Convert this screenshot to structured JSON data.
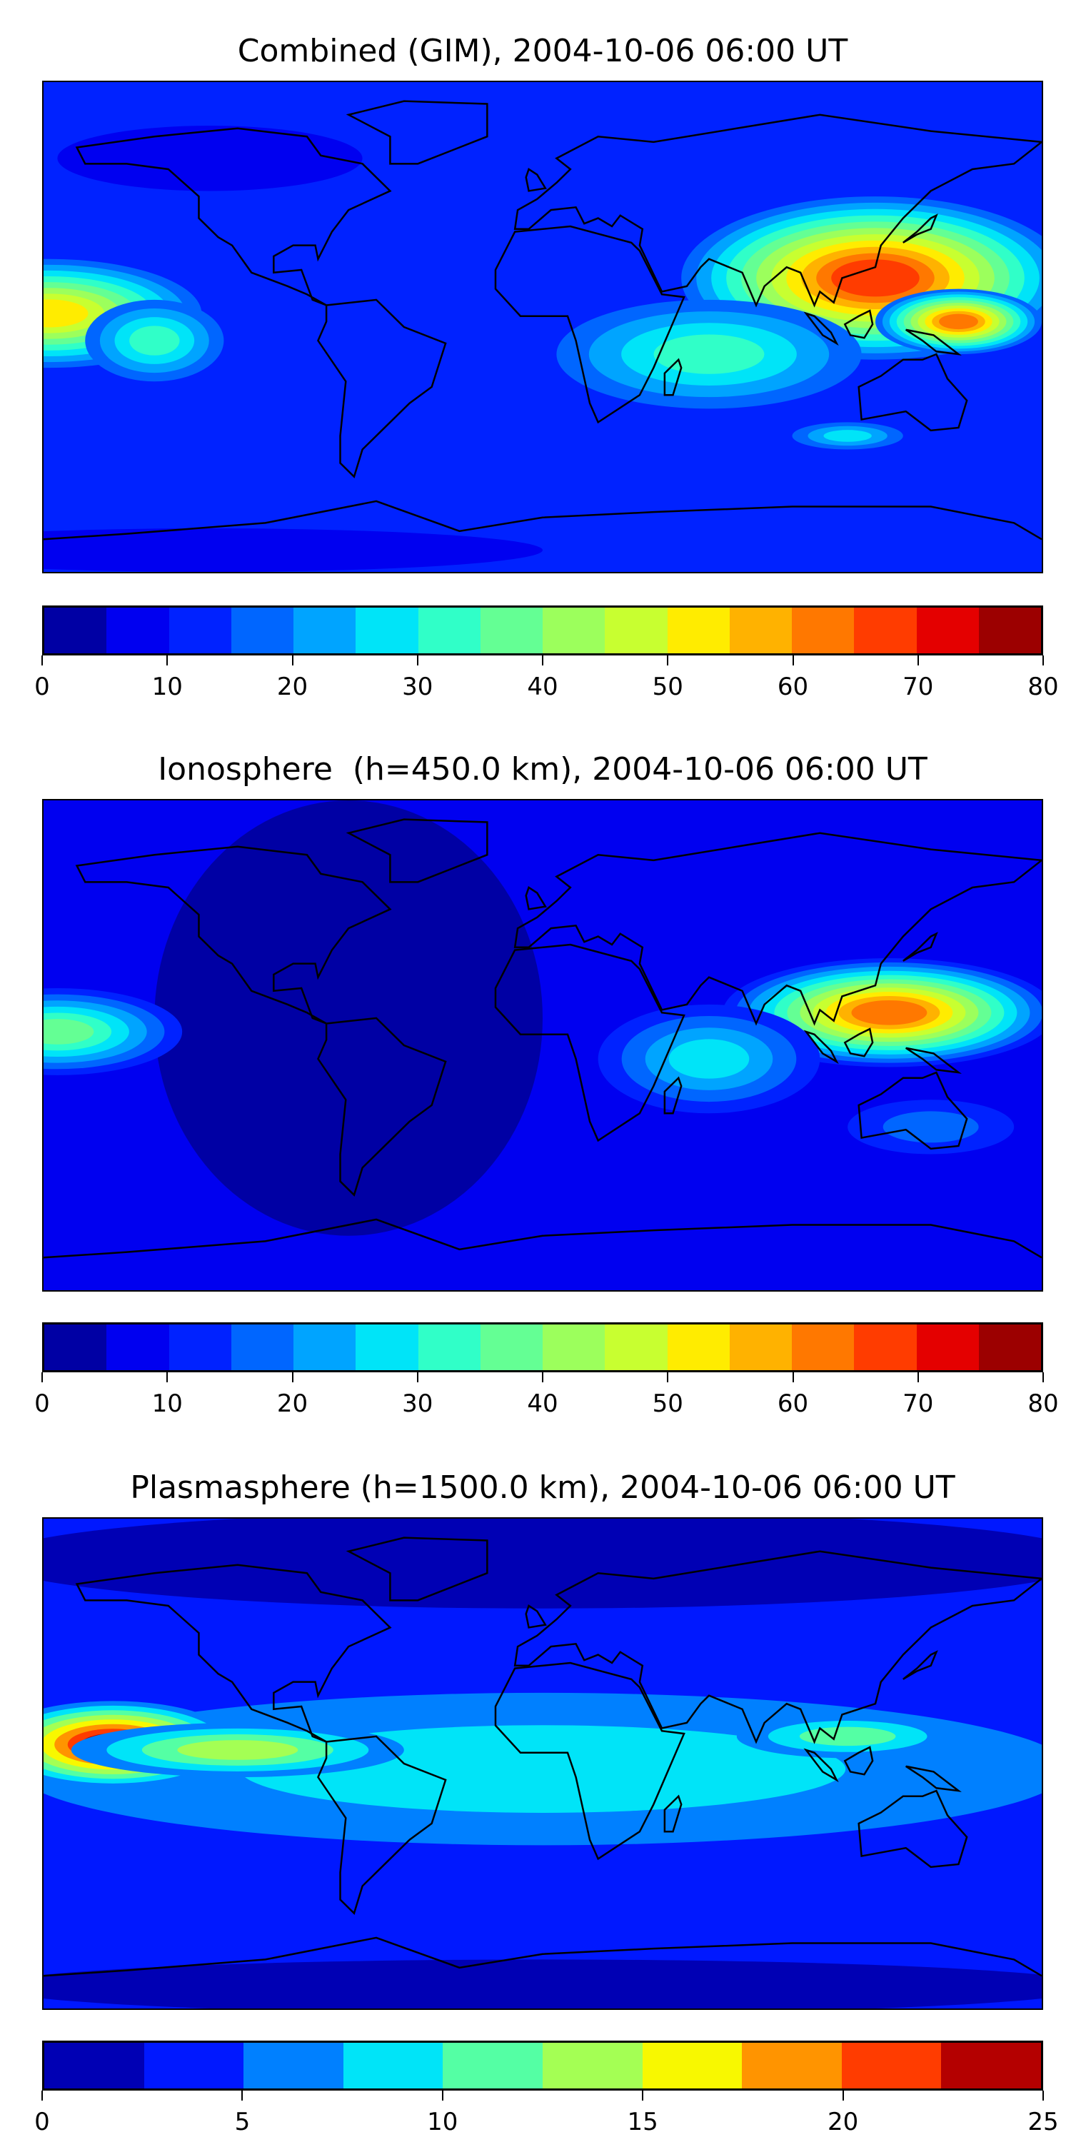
{
  "chart_data": [
    {
      "type": "heatmap",
      "title": "Combined (GIM), 2004-10-06 06:00 UT",
      "xlim": [
        -180,
        180
      ],
      "ylim": [
        -90,
        90
      ],
      "levels": [
        0,
        5,
        10,
        15,
        20,
        25,
        30,
        35,
        40,
        45,
        50,
        55,
        60,
        65,
        70,
        75,
        80
      ],
      "colors": [
        "#0000a4",
        "#0000f0",
        "#0022ff",
        "#0066ff",
        "#00a4ff",
        "#00e4f8",
        "#30ffc8",
        "#64ff94",
        "#9cff5c",
        "#c8ff30",
        "#ffec00",
        "#ffb200",
        "#ff7800",
        "#ff3c00",
        "#e40000",
        "#9c0000"
      ],
      "colorbar_ticks": [
        "0",
        "10",
        "20",
        "30",
        "40",
        "50",
        "60",
        "70",
        "80"
      ],
      "base_value": 12,
      "features": [
        {
          "lon": 120,
          "lat": 18,
          "rx": 70,
          "ry": 30,
          "peak": 67
        },
        {
          "lon": 150,
          "lat": 2,
          "rx": 30,
          "ry": 12,
          "peak": 62
        },
        {
          "lon": -178,
          "lat": 5,
          "rx": 55,
          "ry": 20,
          "peak": 52
        },
        {
          "lon": 60,
          "lat": -10,
          "rx": 55,
          "ry": 20,
          "peak": 33
        },
        {
          "lon": -140,
          "lat": -5,
          "rx": 25,
          "ry": 15,
          "peak": 33
        },
        {
          "lon": 110,
          "lat": -40,
          "rx": 20,
          "ry": 5,
          "peak": 28
        },
        {
          "lon": -120,
          "lat": 62,
          "rx": 55,
          "ry": 12,
          "peak": 7
        },
        {
          "lon": -120,
          "lat": -82,
          "rx": 120,
          "ry": 8,
          "peak": 7
        }
      ]
    },
    {
      "type": "heatmap",
      "title": "Ionosphere  (h=450.0 km), 2004-10-06 06:00 UT",
      "xlim": [
        -180,
        180
      ],
      "ylim": [
        -90,
        90
      ],
      "levels": [
        0,
        5,
        10,
        15,
        20,
        25,
        30,
        35,
        40,
        45,
        50,
        55,
        60,
        65,
        70,
        75,
        80
      ],
      "colors": [
        "#0000a4",
        "#0000f0",
        "#0022ff",
        "#0066ff",
        "#00a4ff",
        "#00e4f8",
        "#30ffc8",
        "#64ff94",
        "#9cff5c",
        "#c8ff30",
        "#ffec00",
        "#ffb200",
        "#ff7800",
        "#ff3c00",
        "#e40000",
        "#9c0000"
      ],
      "colorbar_ticks": [
        "0",
        "10",
        "20",
        "30",
        "40",
        "50",
        "60",
        "70",
        "80"
      ],
      "base_value": 8,
      "features": [
        {
          "lon": -70,
          "lat": 10,
          "rx": 70,
          "ry": 80,
          "peak": 3
        },
        {
          "lon": 125,
          "lat": 12,
          "rx": 60,
          "ry": 20,
          "peak": 62
        },
        {
          "lon": -175,
          "lat": 5,
          "rx": 45,
          "ry": 16,
          "peak": 37
        },
        {
          "lon": 60,
          "lat": -5,
          "rx": 40,
          "ry": 20,
          "peak": 27
        },
        {
          "lon": 140,
          "lat": -30,
          "rx": 30,
          "ry": 10,
          "peak": 17
        }
      ]
    },
    {
      "type": "heatmap",
      "title": "Plasmasphere (h=1500.0 km), 2004-10-06 06:00 UT",
      "xlim": [
        -180,
        180
      ],
      "ylim": [
        -90,
        90
      ],
      "levels": [
        0,
        2.5,
        5,
        7.5,
        10,
        12.5,
        15,
        17.5,
        20,
        22.5,
        25
      ],
      "colors": [
        "#0000b4",
        "#0018ff",
        "#0080ff",
        "#00e4f8",
        "#54ffa4",
        "#a4ff54",
        "#f8f800",
        "#ff9400",
        "#ff3c00",
        "#b40000"
      ],
      "colorbar_ticks": [
        "0",
        "5",
        "10",
        "15",
        "20",
        "25"
      ],
      "base_value": 4,
      "features": [
        {
          "lon": 0,
          "lat": -2,
          "rx": 190,
          "ry": 28,
          "peak": 9
        },
        {
          "lon": -155,
          "lat": 7,
          "rx": 45,
          "ry": 16,
          "peak": 23
        },
        {
          "lon": -110,
          "lat": 5,
          "rx": 60,
          "ry": 10,
          "peak": 13
        },
        {
          "lon": 110,
          "lat": 10,
          "rx": 40,
          "ry": 8,
          "peak": 11
        },
        {
          "lon": 0,
          "lat": 75,
          "rx": 200,
          "ry": 18,
          "peak": 1
        },
        {
          "lon": 0,
          "lat": -82,
          "rx": 200,
          "ry": 10,
          "peak": 1
        }
      ]
    }
  ]
}
